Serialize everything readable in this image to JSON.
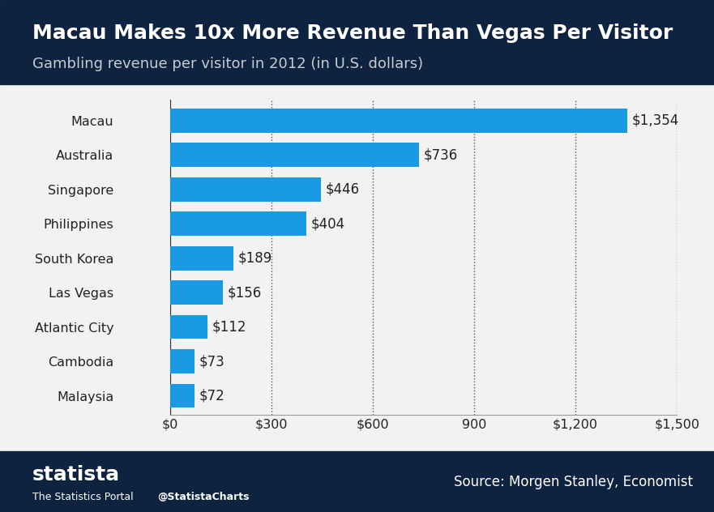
{
  "chart_data": {
    "type": "bar",
    "orientation": "horizontal",
    "title": "Macau Makes 10x More Revenue Than Vegas Per Visitor",
    "subtitle": "Gambling revenue per visitor in 2012 (in U.S. dollars)",
    "categories": [
      "Macau",
      "Australia",
      "Singapore",
      "Philippines",
      "South Korea",
      "Las Vegas",
      "Atlantic City",
      "Cambodia",
      "Malaysia"
    ],
    "values": [
      1354,
      736,
      446,
      404,
      189,
      156,
      112,
      73,
      72
    ],
    "value_labels": [
      "$1,354",
      "$736",
      "$446",
      "$404",
      "$189",
      "$156",
      "$112",
      "$73",
      "$72"
    ],
    "data_labels": true,
    "color": "#1b9ae4",
    "xlim": [
      0,
      1500
    ],
    "xticks": [
      {
        "value": 0,
        "label": "$0"
      },
      {
        "value": 300,
        "label": "$300"
      },
      {
        "value": 600,
        "label": "$600"
      },
      900,
      {
        "value": 1200,
        "label": "$1,200"
      },
      {
        "value": 1500,
        "label": "$1,500"
      }
    ],
    "grid": true,
    "source": "Source: Morgen Stanley, Economist",
    "annotations": [
      "statista",
      "The Statistics Portal",
      "@StatistaCharts"
    ]
  }
}
